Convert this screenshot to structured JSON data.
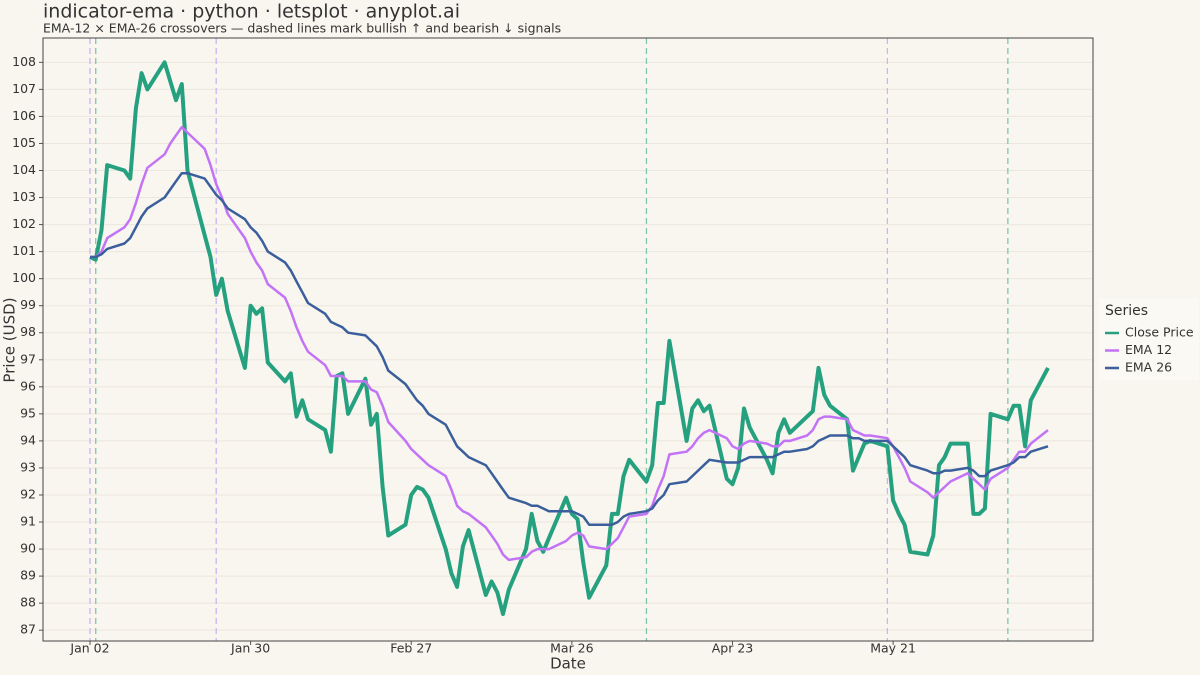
{
  "chart_data": {
    "type": "line",
    "title": "indicator-ema · python · letsplot · anyplot.ai",
    "subtitle": "EMA-12 × EMA-26 crossovers — dashed lines mark bullish ↑ and bearish ↓ signals",
    "x_label": "Date",
    "y_label": "Price (USD)",
    "legend_title": "Series",
    "legend_position": "right",
    "grid": true,
    "x": [
      "Jan 02",
      "Jan 03",
      "Jan 04",
      "Jan 05",
      "Jan 08",
      "Jan 09",
      "Jan 10",
      "Jan 11",
      "Jan 12",
      "Jan 15",
      "Jan 16",
      "Jan 17",
      "Jan 18",
      "Jan 19",
      "Jan 22",
      "Jan 23",
      "Jan 24",
      "Jan 25",
      "Jan 26",
      "Jan 29",
      "Jan 30",
      "Jan 31",
      "Feb 01",
      "Feb 02",
      "Feb 05",
      "Feb 06",
      "Feb 07",
      "Feb 08",
      "Feb 09",
      "Feb 12",
      "Feb 13",
      "Feb 14",
      "Feb 15",
      "Feb 16",
      "Feb 19",
      "Feb 20",
      "Feb 21",
      "Feb 22",
      "Feb 23",
      "Feb 26",
      "Feb 27",
      "Feb 28",
      "Feb 29",
      "Mar 01",
      "Mar 04",
      "Mar 05",
      "Mar 06",
      "Mar 07",
      "Mar 08",
      "Mar 11",
      "Mar 12",
      "Mar 13",
      "Mar 14",
      "Mar 15",
      "Mar 18",
      "Mar 19",
      "Mar 20",
      "Mar 21",
      "Mar 22",
      "Mar 25",
      "Mar 26",
      "Mar 27",
      "Mar 28",
      "Mar 29",
      "Apr 01",
      "Apr 02",
      "Apr 03",
      "Apr 04",
      "Apr 05",
      "Apr 08",
      "Apr 09",
      "Apr 10",
      "Apr 11",
      "Apr 12",
      "Apr 15",
      "Apr 16",
      "Apr 17",
      "Apr 18",
      "Apr 19",
      "Apr 22",
      "Apr 23",
      "Apr 24",
      "Apr 25",
      "Apr 26",
      "Apr 29",
      "Apr 30",
      "May 01",
      "May 02",
      "May 03",
      "May 06",
      "May 07",
      "May 08",
      "May 09",
      "May 10",
      "May 13",
      "May 14",
      "May 15",
      "May 16",
      "May 17",
      "May 20",
      "May 21",
      "May 22",
      "May 23",
      "May 24",
      "May 27",
      "May 28",
      "May 29",
      "May 30",
      "May 31",
      "Jun 03",
      "Jun 04",
      "Jun 05",
      "Jun 06",
      "Jun 07",
      "Jun 10",
      "Jun 11",
      "Jun 12",
      "Jun 13",
      "Jun 14",
      "Jun 17"
    ],
    "xticks": [
      "Jan 02",
      "Jan 30",
      "Feb 27",
      "Mar 26",
      "Apr 23",
      "May 21"
    ],
    "ylim": [
      86.6,
      108.9
    ],
    "yticks": [
      87,
      88,
      89,
      90,
      91,
      92,
      93,
      94,
      95,
      96,
      97,
      98,
      99,
      100,
      101,
      102,
      103,
      104,
      105,
      106,
      107,
      108
    ],
    "series": [
      {
        "name": "Close Price",
        "color": "#26a17f",
        "width": 4,
        "values": [
          100.8,
          100.7,
          101.8,
          104.2,
          104.0,
          103.7,
          106.3,
          107.6,
          107.0,
          108.0,
          107.3,
          106.6,
          107.2,
          104.0,
          101.6,
          100.8,
          99.4,
          100.0,
          98.8,
          96.7,
          99.0,
          98.7,
          98.9,
          96.9,
          96.2,
          96.5,
          94.9,
          95.5,
          94.8,
          94.4,
          93.6,
          96.4,
          96.5,
          95.0,
          96.3,
          94.6,
          95.0,
          92.3,
          90.5,
          90.9,
          92.0,
          92.3,
          92.2,
          91.9,
          90.0,
          89.1,
          88.6,
          90.1,
          90.7,
          88.3,
          88.8,
          88.4,
          87.6,
          88.5,
          90.0,
          91.3,
          90.3,
          89.9,
          90.4,
          91.9,
          91.3,
          91.1,
          89.5,
          88.2,
          89.4,
          91.3,
          91.3,
          92.7,
          93.3,
          92.5,
          93.1,
          95.4,
          95.4,
          97.7,
          94.0,
          95.2,
          95.5,
          95.1,
          95.3,
          92.6,
          92.4,
          93.0,
          95.2,
          94.5,
          93.3,
          92.8,
          94.3,
          94.8,
          94.3,
          94.9,
          95.1,
          96.7,
          95.7,
          95.3,
          94.8,
          92.9,
          93.4,
          93.9,
          94.0,
          93.8,
          91.8,
          91.3,
          90.9,
          89.9,
          89.8,
          90.5,
          93.1,
          93.4,
          93.9,
          93.9,
          91.3,
          91.3,
          91.5,
          95.0,
          94.8,
          95.3,
          95.3,
          93.8,
          95.5,
          96.7
        ]
      },
      {
        "name": "EMA 12",
        "color": "#c373f5",
        "width": 2.5,
        "values": [
          100.8,
          100.8,
          101.0,
          101.5,
          101.9,
          102.2,
          102.8,
          103.5,
          104.1,
          104.6,
          105.0,
          105.3,
          105.6,
          105.4,
          104.8,
          104.2,
          103.5,
          103.0,
          102.4,
          101.5,
          101.0,
          100.6,
          100.3,
          99.8,
          99.3,
          98.8,
          98.2,
          97.7,
          97.3,
          96.8,
          96.4,
          96.4,
          96.4,
          96.2,
          96.2,
          95.9,
          95.8,
          95.3,
          94.7,
          94.0,
          93.7,
          93.5,
          93.3,
          93.1,
          92.7,
          92.2,
          91.6,
          91.4,
          91.3,
          90.8,
          90.5,
          90.2,
          89.8,
          89.6,
          89.7,
          89.9,
          90.0,
          90.0,
          90.0,
          90.3,
          90.5,
          90.6,
          90.5,
          90.1,
          90.0,
          90.2,
          90.4,
          90.8,
          91.2,
          91.3,
          91.6,
          92.2,
          92.7,
          93.5,
          93.6,
          93.8,
          94.1,
          94.3,
          94.4,
          94.1,
          93.8,
          93.7,
          93.9,
          94.0,
          93.9,
          93.8,
          93.8,
          94.0,
          94.0,
          94.2,
          94.4,
          94.8,
          94.9,
          94.9,
          94.8,
          94.4,
          94.3,
          94.2,
          94.2,
          94.1,
          93.8,
          93.4,
          93.0,
          92.5,
          92.1,
          91.9,
          92.1,
          92.3,
          92.5,
          92.8,
          92.6,
          92.4,
          92.2,
          92.6,
          93.0,
          93.3,
          93.6,
          93.6,
          93.9,
          94.4
        ]
      },
      {
        "name": "EMA 26",
        "color": "#3b5f9c",
        "width": 2.5,
        "values": [
          100.8,
          100.8,
          100.9,
          101.1,
          101.3,
          101.5,
          101.9,
          102.3,
          102.6,
          103.0,
          103.3,
          103.6,
          103.9,
          103.9,
          103.7,
          103.4,
          103.1,
          102.9,
          102.6,
          102.2,
          101.9,
          101.7,
          101.4,
          101.0,
          100.6,
          100.3,
          99.9,
          99.5,
          99.1,
          98.7,
          98.4,
          98.3,
          98.2,
          98.0,
          97.9,
          97.7,
          97.5,
          97.1,
          96.6,
          96.1,
          95.8,
          95.5,
          95.3,
          95.0,
          94.6,
          94.2,
          93.8,
          93.6,
          93.4,
          93.1,
          92.8,
          92.5,
          92.2,
          91.9,
          91.7,
          91.6,
          91.6,
          91.5,
          91.4,
          91.4,
          91.4,
          91.3,
          91.2,
          90.9,
          90.9,
          90.9,
          91.0,
          91.2,
          91.3,
          91.4,
          91.5,
          91.8,
          92.0,
          92.4,
          92.5,
          92.7,
          92.9,
          93.1,
          93.3,
          93.2,
          93.2,
          93.2,
          93.3,
          93.4,
          93.4,
          93.4,
          93.5,
          93.6,
          93.6,
          93.7,
          93.8,
          94.0,
          94.1,
          94.2,
          94.2,
          94.1,
          94.1,
          94.0,
          94.0,
          94.0,
          93.8,
          93.6,
          93.4,
          93.1,
          92.9,
          92.8,
          92.8,
          92.9,
          92.9,
          93.0,
          92.9,
          92.7,
          92.7,
          92.9,
          93.1,
          93.2,
          93.4,
          93.4,
          93.6,
          93.8
        ]
      }
    ],
    "bullish_crossovers": [
      "Jan 03",
      "Apr 08",
      "Jun 10"
    ],
    "bullish_color": "#7cc7ad",
    "bearish_crossovers": [
      "Jan 02",
      "Jan 24",
      "May 20"
    ],
    "bearish_color": "#c9b6f2"
  }
}
